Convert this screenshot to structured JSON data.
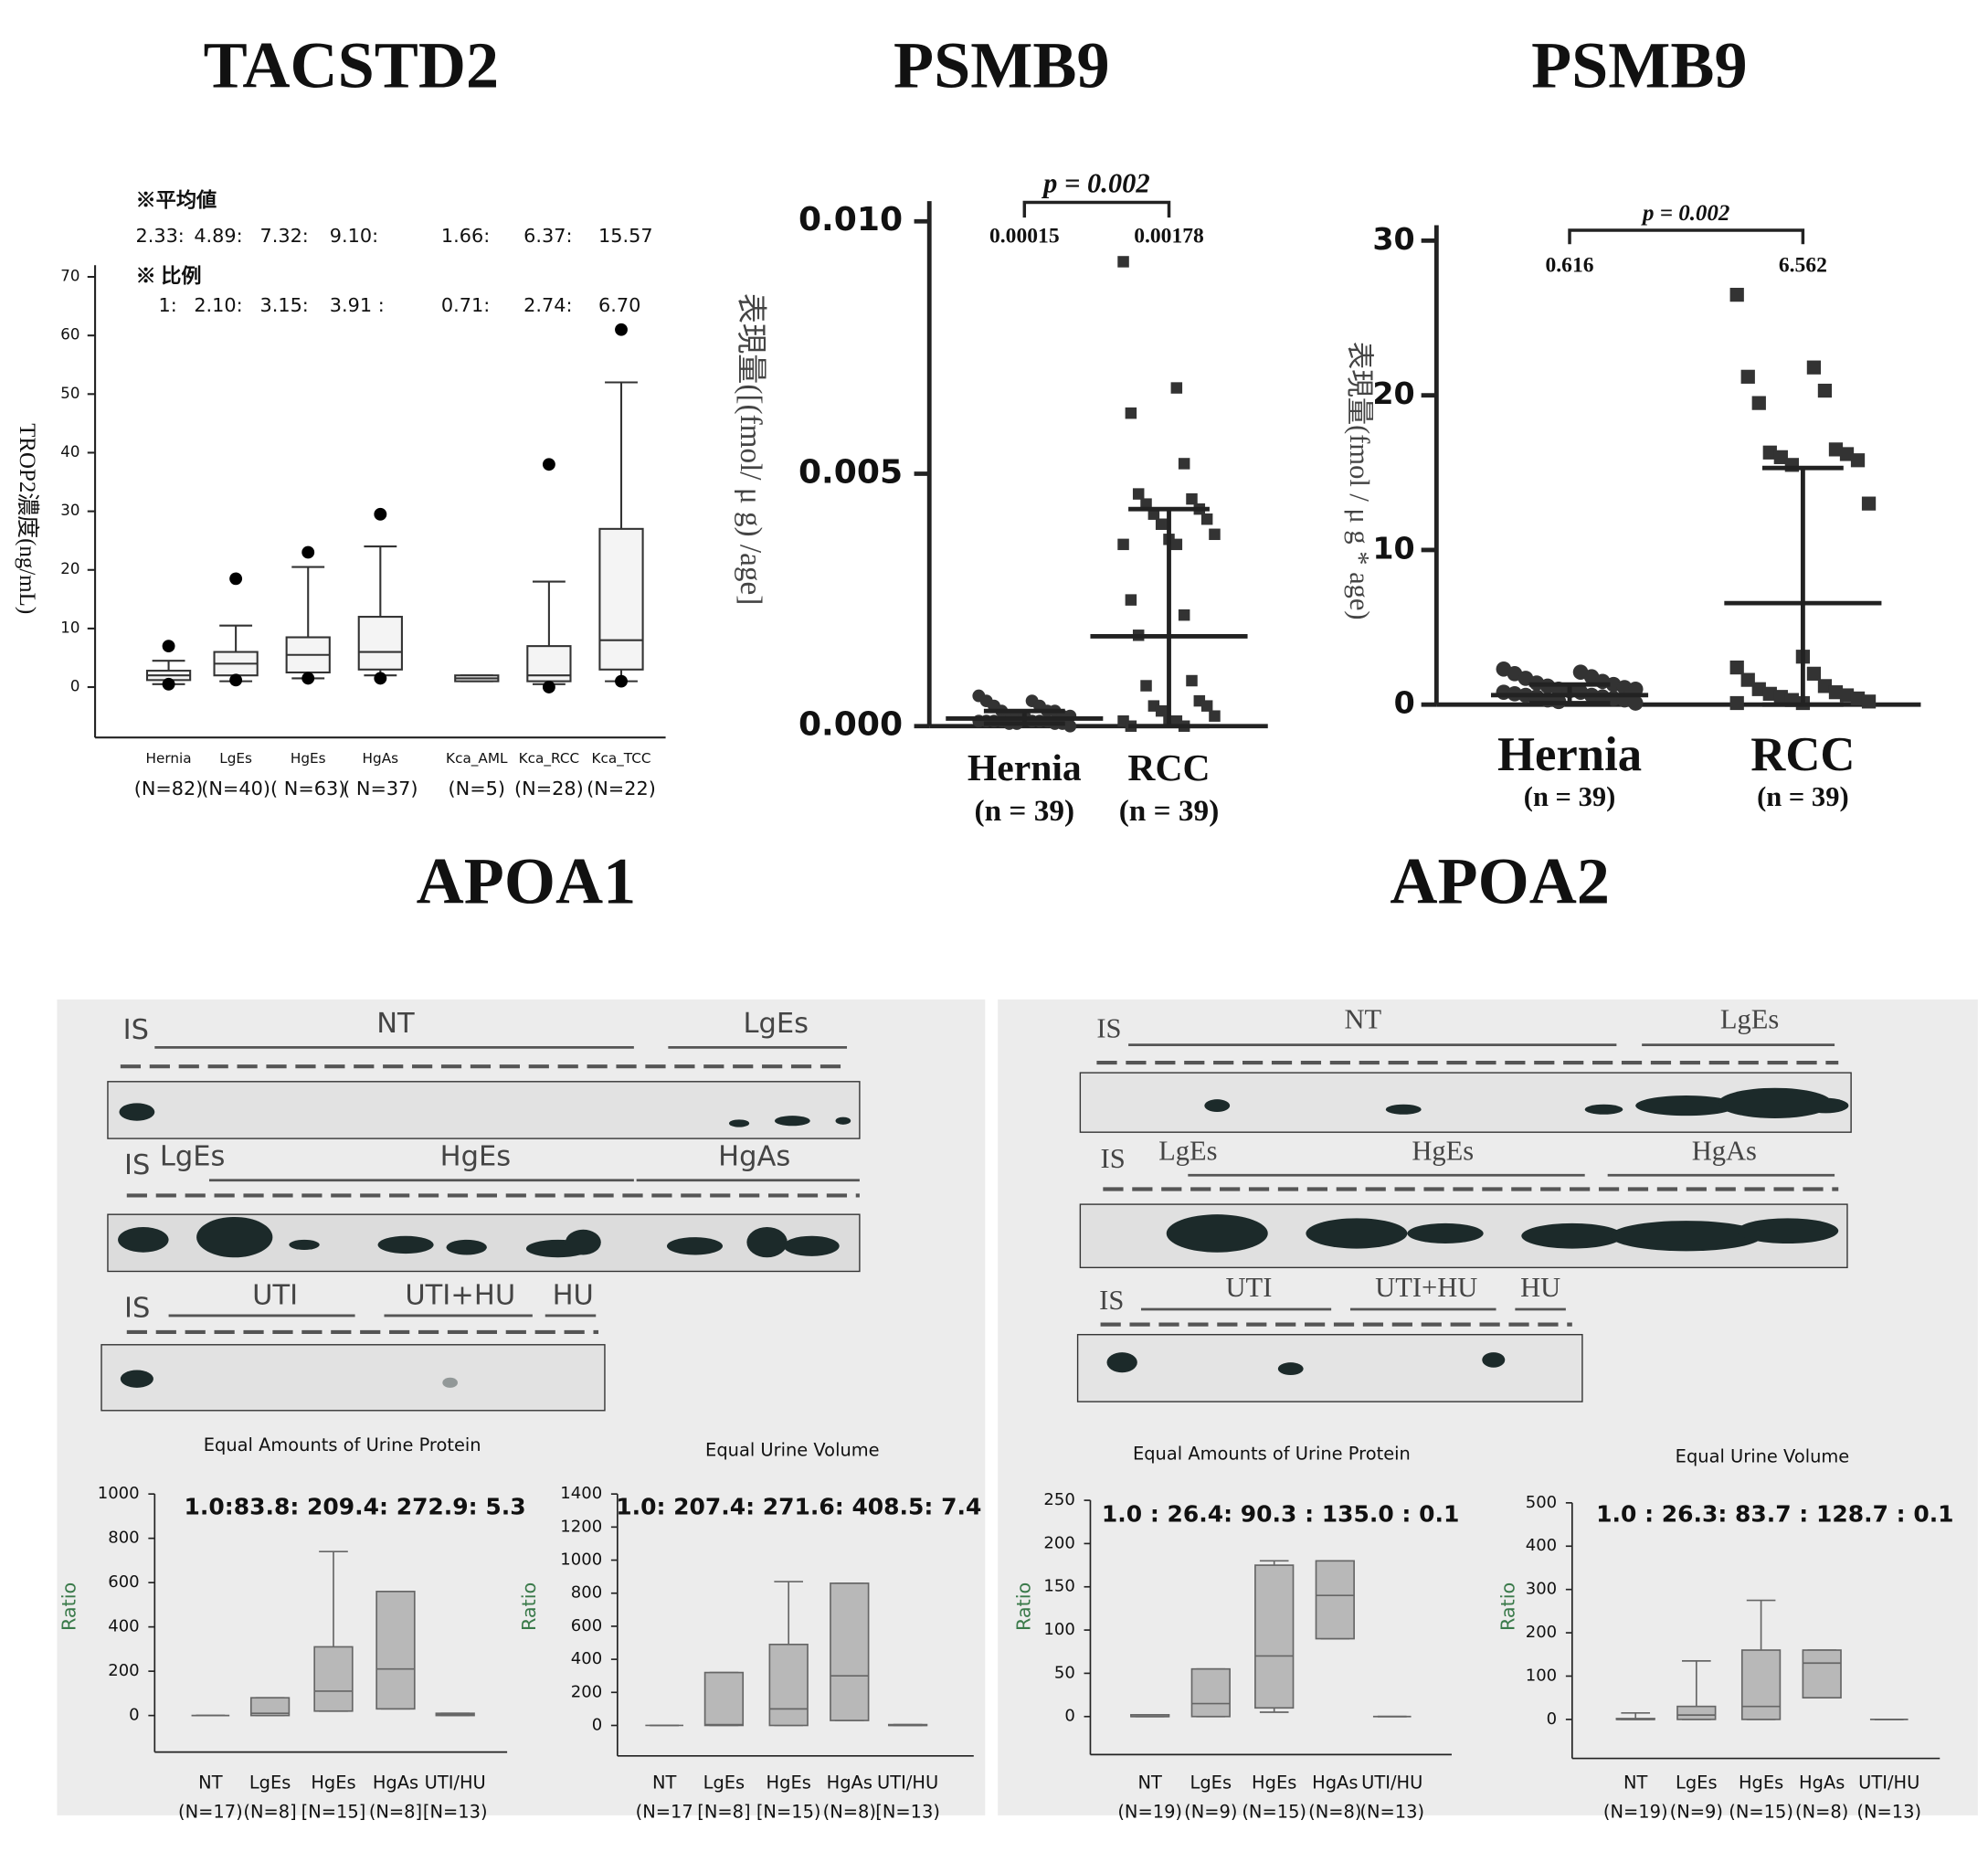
{
  "chart_data": [
    {
      "type": "box",
      "title": "TACSTD2",
      "ylabel": "TROP2濃度(ng/mL)",
      "note_mean": "※平均値",
      "mean_row": [
        "2.33:",
        "4.89:",
        "7.32:",
        "9.10:",
        "1.66:",
        "6.37:",
        "15.57"
      ],
      "note_ratio": "※ 比例",
      "ratio_row": [
        "1:",
        "2.10:",
        "3.15:",
        "3.91 :",
        "0.71:",
        "2.74:",
        "6.70"
      ],
      "categories": [
        "Hernia",
        "LgEs",
        "HgEs",
        "HgAs",
        "Kca_AML",
        "Kca_RCC",
        "Kca_TCC"
      ],
      "sublabels": [
        "(N=82)",
        "(N=40)",
        "( N=63)",
        "( N=37)",
        "(N=5)",
        "(N=28)",
        "(N=22)"
      ],
      "boxes": [
        {
          "whislo": 0.5,
          "q1": 1.2,
          "med": 2,
          "q3": 2.8,
          "whishi": 4.5,
          "fliers": [
            7,
            0.5
          ]
        },
        {
          "whislo": 1,
          "q1": 2,
          "med": 4,
          "q3": 6,
          "whishi": 10.5,
          "fliers": [
            18.5,
            1.2
          ]
        },
        {
          "whislo": 1.5,
          "q1": 2.5,
          "med": 5.5,
          "q3": 8.5,
          "whishi": 20.5,
          "fliers": [
            23,
            1.5
          ]
        },
        {
          "whislo": 2,
          "q1": 3,
          "med": 6,
          "q3": 12,
          "whishi": 24,
          "fliers": [
            29.5,
            1.5
          ]
        },
        {
          "whislo": 1,
          "q1": 1,
          "med": 1.5,
          "q3": 2,
          "whishi": 2,
          "fliers": []
        },
        {
          "whislo": 0.5,
          "q1": 1,
          "med": 2,
          "q3": 7,
          "whishi": 18,
          "fliers": [
            38,
            0
          ]
        },
        {
          "whislo": 1,
          "q1": 3,
          "med": 8,
          "q3": 27,
          "whishi": 52,
          "fliers": [
            61,
            1
          ]
        }
      ],
      "ylim": [
        -8.6,
        72
      ],
      "yticks": [
        0,
        10,
        20,
        30,
        40,
        50,
        60,
        70
      ]
    },
    {
      "type": "dot",
      "title": "PSMB9",
      "ylabel": "表現量([(fmol/ μ g) /age]",
      "p_text": "p = 0.002",
      "categories": [
        "Hernia",
        "RCC"
      ],
      "sublabels": [
        "(n = 39)",
        "(n = 39)"
      ],
      "means": [
        0.00015,
        0.00178
      ],
      "err_low": [
        5e-05,
        0
      ],
      "err_high": [
        0.0003,
        0.0043
      ],
      "points": [
        [
          0.0006,
          0.0005,
          0.0005,
          0.0004,
          0.0004,
          0.0003,
          0.0003,
          0.0003,
          0.0002,
          0.0002,
          0.0002,
          0.0002,
          0.0002,
          0.0001,
          0.0001,
          0.0001,
          0.0001,
          0.0001,
          0.0001,
          0.0001,
          5e-05,
          5e-05,
          5e-05,
          5e-05,
          0
        ],
        [
          0.0092,
          0.0067,
          0.0062,
          0.0052,
          0.0046,
          0.0045,
          0.0044,
          0.0043,
          0.0042,
          0.0041,
          0.004,
          0.0038,
          0.0037,
          0.0036,
          0.0036,
          0.0025,
          0.0022,
          0.0018,
          0.0009,
          0.0008,
          0.0005,
          0.0004,
          0.0004,
          0.0003,
          0.0002,
          0.0001,
          0.0001,
          0.0001,
          0,
          0
        ]
      ],
      "ylim": [
        0,
        0.0104
      ],
      "yticks": [
        {
          "value": 0,
          "label": "0.000"
        },
        {
          "value": 0.005,
          "label": "0.005"
        },
        {
          "value": 0.01,
          "label": "0.010"
        }
      ]
    },
    {
      "type": "dot",
      "title": "PSMB9",
      "ylabel": "表現量(fmol / μ g * age)",
      "p_text": "p = 0.002",
      "categories": [
        "Hernia",
        "RCC"
      ],
      "sublabels": [
        "(n = 39)",
        "(n = 39)"
      ],
      "means": [
        0.616,
        6.562
      ],
      "err_low": [
        0.1,
        0
      ],
      "err_high": [
        1.3,
        15.3
      ],
      "points": [
        [
          2.3,
          2.1,
          2,
          1.8,
          1.7,
          1.5,
          1.4,
          1.3,
          1.2,
          1.1,
          1,
          1,
          0.9,
          0.8,
          0.8,
          0.7,
          0.6,
          0.6,
          0.5,
          0.5,
          0.4,
          0.3,
          0.3,
          0.2,
          0.1
        ],
        [
          26.5,
          21.8,
          21.2,
          20.3,
          19.5,
          16.5,
          16.3,
          16.2,
          16,
          15.8,
          15.5,
          13,
          3.1,
          2.4,
          2,
          1.6,
          1.2,
          1,
          0.8,
          0.7,
          0.6,
          0.5,
          0.4,
          0.3,
          0.2,
          0.1,
          0.1
        ]
      ],
      "ylim": [
        0,
        31
      ],
      "yticks": [
        0,
        10,
        20,
        30
      ]
    },
    {
      "type": "box",
      "title": "Equal Amounts of Urine Protein",
      "ratio_text": "1.0:83.8: 209.4: 272.9: 5.3",
      "ylabel": "Ratio",
      "categories": [
        "NT",
        "LgEs",
        "HgEs",
        "HgAs",
        "UTI/HU"
      ],
      "sublabels": [
        "(N=17)",
        "(N=8]",
        "[N=15]",
        "(N=8]",
        "[N=13)"
      ],
      "boxes": [
        {
          "whislo": 0,
          "q1": 0,
          "med": 0,
          "q3": 0,
          "whishi": 0,
          "fliers": []
        },
        {
          "whislo": 0,
          "q1": 0,
          "med": 10,
          "q3": 80,
          "whishi": 80,
          "fliers": []
        },
        {
          "whislo": 20,
          "q1": 20,
          "med": 110,
          "q3": 310,
          "whishi": 740,
          "fliers": []
        },
        {
          "whislo": 30,
          "q1": 30,
          "med": 210,
          "q3": 560,
          "whishi": 560,
          "fliers": []
        },
        {
          "whislo": 0,
          "q1": 0,
          "med": 5,
          "q3": 10,
          "whishi": 10,
          "fliers": []
        }
      ],
      "ylim": [
        -165,
        1000
      ],
      "yticks": [
        0,
        200,
        400,
        600,
        800,
        1000
      ]
    },
    {
      "type": "box",
      "title": "Equal Urine Volume",
      "ratio_text": "1.0: 207.4: 271.6: 408.5: 7.4",
      "ylabel": "Ratio",
      "categories": [
        "NT",
        "LgEs",
        "HgEs",
        "HgAs",
        "UTI/HU"
      ],
      "sublabels": [
        "(N=17",
        "[N=8]",
        "[N=15)",
        "(N=8)",
        "[N=13)"
      ],
      "boxes": [
        {
          "whislo": 0,
          "q1": 0,
          "med": 0,
          "q3": 0,
          "whishi": 0,
          "fliers": []
        },
        {
          "whislo": 0,
          "q1": 0,
          "med": 5,
          "q3": 320,
          "whishi": 320,
          "fliers": []
        },
        {
          "whislo": 0,
          "q1": 0,
          "med": 100,
          "q3": 490,
          "whishi": 870,
          "fliers": []
        },
        {
          "whislo": 30,
          "q1": 30,
          "med": 300,
          "q3": 860,
          "whishi": 860,
          "fliers": []
        },
        {
          "whislo": 0,
          "q1": 0,
          "med": 0,
          "q3": 5,
          "whishi": 5,
          "fliers": []
        }
      ],
      "ylim": [
        -184,
        1400
      ],
      "yticks": [
        0,
        200,
        400,
        600,
        800,
        1000,
        1200,
        1400
      ]
    },
    {
      "type": "box",
      "title": "Equal Amounts of Urine Protein",
      "ratio_text": "1.0 : 26.4:  90.3 : 135.0 : 0.1",
      "ylabel": "Ratio",
      "categories": [
        "NT",
        "LgEs",
        "HgEs",
        "HgAs",
        "UTI/HU"
      ],
      "sublabels": [
        "(N=19)",
        "(N=9)",
        "(N=15)",
        "(N=8)",
        "(N=13)"
      ],
      "boxes": [
        {
          "whislo": 0,
          "q1": 0,
          "med": 0,
          "q3": 2,
          "whishi": 2,
          "fliers": []
        },
        {
          "whislo": 0,
          "q1": 0,
          "med": 15,
          "q3": 55,
          "whishi": 55,
          "fliers": []
        },
        {
          "whislo": 5,
          "q1": 10,
          "med": 70,
          "q3": 175,
          "whishi": 180,
          "fliers": []
        },
        {
          "whislo": 90,
          "q1": 90,
          "med": 140,
          "q3": 180,
          "whishi": 180,
          "fliers": []
        },
        {
          "whislo": 0,
          "q1": 0,
          "med": 0,
          "q3": 0,
          "whishi": 0,
          "fliers": []
        }
      ],
      "ylim": [
        -44,
        250
      ],
      "yticks": [
        0,
        50,
        100,
        150,
        200,
        250
      ]
    },
    {
      "type": "box",
      "title": "Equal Urine Volume",
      "ratio_text": "1.0 :  26.3:  83.7 : 128.7 :  0.1",
      "ylabel": "Ratio",
      "categories": [
        "NT",
        "LgEs",
        "HgEs",
        "HgAs",
        "UTI/HU"
      ],
      "sublabels": [
        "(N=19)",
        "(N=9)",
        "(N=15)",
        "(N=8)",
        "(N=13)"
      ],
      "boxes": [
        {
          "whislo": 0,
          "q1": 0,
          "med": 0,
          "q3": 2,
          "whishi": 15,
          "fliers": []
        },
        {
          "whislo": 0,
          "q1": 0,
          "med": 10,
          "q3": 30,
          "whishi": 135,
          "fliers": []
        },
        {
          "whislo": 0,
          "q1": 0,
          "med": 30,
          "q3": 160,
          "whishi": 275,
          "fliers": []
        },
        {
          "whislo": 50,
          "q1": 50,
          "med": 130,
          "q3": 160,
          "whishi": 160,
          "fliers": []
        },
        {
          "whislo": 0,
          "q1": 0,
          "med": 0,
          "q3": 0,
          "whishi": 0,
          "fliers": []
        }
      ],
      "ylim": [
        -90,
        500
      ],
      "yticks": [
        0,
        100,
        200,
        300,
        400,
        500
      ]
    }
  ],
  "blots": [
    {
      "title": "APOA1",
      "rows": [
        [
          "IS",
          "NT",
          "LgEs"
        ],
        [
          "IS",
          "LgEs",
          "HgEs",
          "HgAs"
        ],
        [
          "IS",
          "UTI",
          "UTI+HU",
          "HU"
        ]
      ]
    },
    {
      "title": "APOA2",
      "rows": [
        [
          "IS",
          "NT",
          "LgEs"
        ],
        [
          "IS",
          "LgEs",
          "HgEs",
          "HgAs"
        ],
        [
          "IS",
          "UTI",
          "UTI+HU",
          "HU"
        ]
      ]
    }
  ]
}
